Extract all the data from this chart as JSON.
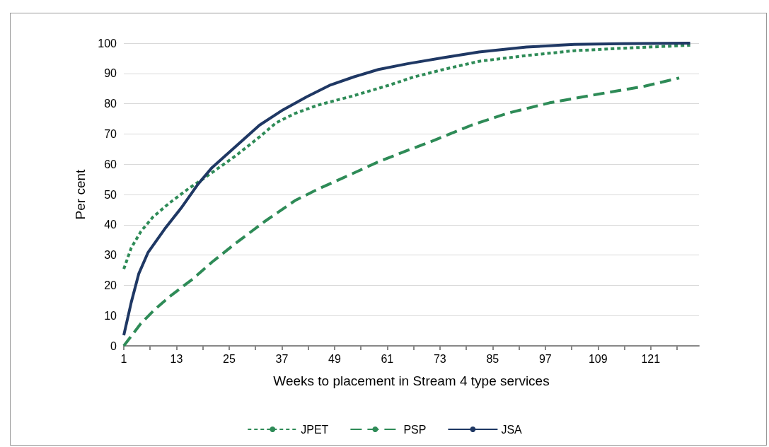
{
  "chart_data": {
    "type": "line",
    "xlabel": "Weeks to placement in Stream 4 type services",
    "ylabel": "Per cent",
    "xlim": [
      1,
      132
    ],
    "xticks": [
      1,
      {
        "value": 7,
        "label": null
      },
      13,
      {
        "value": 19,
        "label": null
      },
      25,
      {
        "value": 31,
        "label": null
      },
      37,
      {
        "value": 43,
        "label": null
      },
      49,
      {
        "value": 55,
        "label": null
      },
      61,
      {
        "value": 67,
        "label": null
      },
      73,
      {
        "value": 79,
        "label": null
      },
      85,
      {
        "value": 91,
        "label": null
      },
      97,
      {
        "value": 103,
        "label": null
      },
      109,
      {
        "value": 115,
        "label": null
      },
      121,
      {
        "value": 127,
        "label": null
      }
    ],
    "ylim": [
      0,
      100
    ],
    "yticks": [
      0,
      10,
      20,
      30,
      40,
      50,
      60,
      70,
      80,
      90,
      100
    ],
    "grid": "y",
    "legend": "bottom",
    "marker": "none",
    "series": [
      {
        "name": "JPET",
        "color": "#2e8b57",
        "line_style": "dotted",
        "x": [
          1,
          2.7,
          4.9,
          7.6,
          11.4,
          15.7,
          18.9,
          22.7,
          26.5,
          31.9,
          35.7,
          40,
          45.4,
          53.5,
          61.6,
          67,
          73.8,
          81.9,
          92.7,
          103.6,
          114.4,
          130
        ],
        "values": [
          25.4,
          32.4,
          37.8,
          42.5,
          47.2,
          51.9,
          55,
          58.9,
          62.8,
          69,
          73.7,
          76.8,
          79.6,
          82.7,
          86.2,
          88.8,
          91.3,
          94,
          95.9,
          97.5,
          98.3,
          99.3
        ]
      },
      {
        "name": "PSP",
        "color": "#2e8b57",
        "line_style": "dashed",
        "x": [
          1,
          4.9,
          8.1,
          11.9,
          16.8,
          21.1,
          26.5,
          33,
          40,
          45.4,
          50.8,
          59,
          65.5,
          71,
          80.2,
          88.3,
          98,
          108.9,
          119.7,
          127.5
        ],
        "values": [
          0,
          7.4,
          12.1,
          16.8,
          22.2,
          27.7,
          33.9,
          41,
          48,
          51.9,
          55.4,
          60.8,
          64.5,
          67.5,
          72.9,
          76.8,
          80.3,
          83.1,
          85.8,
          88.5
        ]
      },
      {
        "name": "JSA",
        "color": "#1f3864",
        "line_style": "solid",
        "x": [
          1,
          2.7,
          4.4,
          6.5,
          10.3,
          14.1,
          17.9,
          21.1,
          26.5,
          31.9,
          37.3,
          42.7,
          48.1,
          53.5,
          59,
          65.6,
          73.8,
          81.9,
          92.7,
          103.6,
          114.4,
          130
        ],
        "values": [
          3.5,
          14.4,
          23.8,
          30.8,
          38.6,
          45.6,
          53.4,
          58.9,
          65.9,
          72.9,
          78,
          82.3,
          86.2,
          88.9,
          91.3,
          93.2,
          95.2,
          97.1,
          98.7,
          99.6,
          99.8,
          100
        ]
      }
    ]
  }
}
